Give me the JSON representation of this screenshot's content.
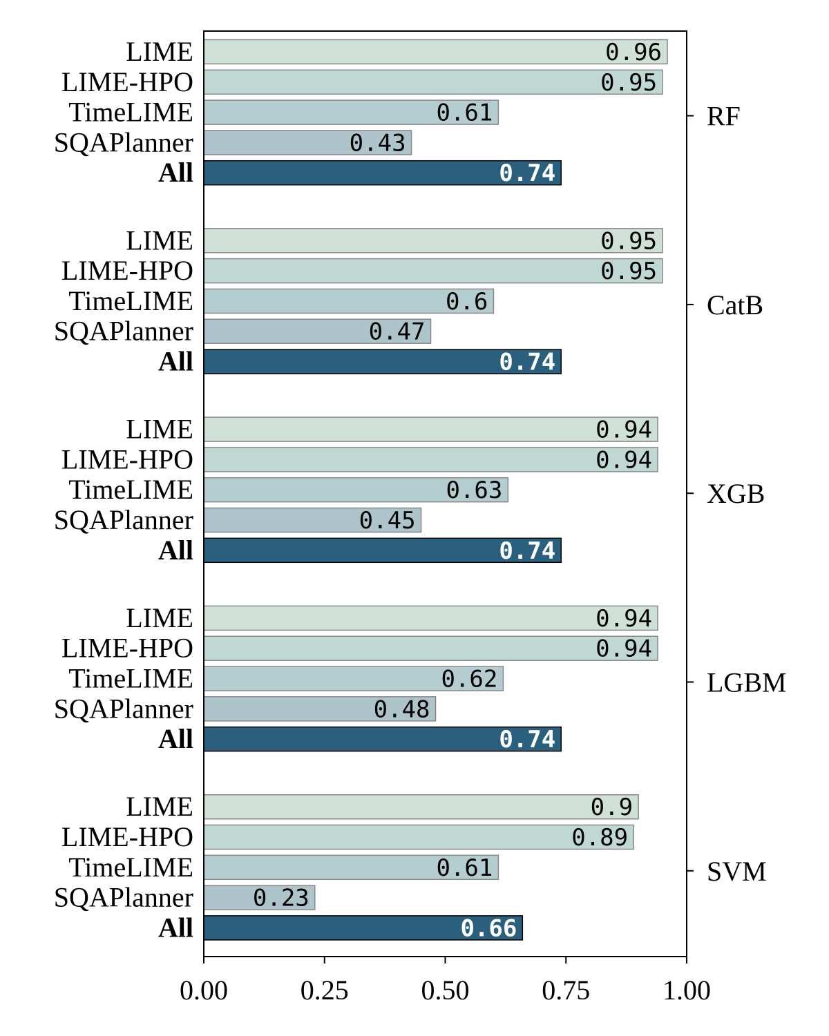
{
  "chart_data": {
    "type": "bar",
    "orientation": "horizontal",
    "xlim": [
      0,
      1
    ],
    "x_ticks": [
      "0.00",
      "0.25",
      "0.50",
      "0.75",
      "1.00"
    ],
    "grid": false,
    "groups": [
      {
        "name": "RF",
        "bars": [
          {
            "label": "LIME",
            "value": 0.96,
            "value_text": "0.96"
          },
          {
            "label": "LIME-HPO",
            "value": 0.95,
            "value_text": "0.95"
          },
          {
            "label": "TimeLIME",
            "value": 0.61,
            "value_text": "0.61"
          },
          {
            "label": "SQAPlanner",
            "value": 0.43,
            "value_text": "0.43"
          },
          {
            "label": "All",
            "value": 0.74,
            "value_text": "0.74"
          }
        ]
      },
      {
        "name": "CatB",
        "bars": [
          {
            "label": "LIME",
            "value": 0.95,
            "value_text": "0.95"
          },
          {
            "label": "LIME-HPO",
            "value": 0.95,
            "value_text": "0.95"
          },
          {
            "label": "TimeLIME",
            "value": 0.6,
            "value_text": "0.6"
          },
          {
            "label": "SQAPlanner",
            "value": 0.47,
            "value_text": "0.47"
          },
          {
            "label": "All",
            "value": 0.74,
            "value_text": "0.74"
          }
        ]
      },
      {
        "name": "XGB",
        "bars": [
          {
            "label": "LIME",
            "value": 0.94,
            "value_text": "0.94"
          },
          {
            "label": "LIME-HPO",
            "value": 0.94,
            "value_text": "0.94"
          },
          {
            "label": "TimeLIME",
            "value": 0.63,
            "value_text": "0.63"
          },
          {
            "label": "SQAPlanner",
            "value": 0.45,
            "value_text": "0.45"
          },
          {
            "label": "All",
            "value": 0.74,
            "value_text": "0.74"
          }
        ]
      },
      {
        "name": "LGBM",
        "bars": [
          {
            "label": "LIME",
            "value": 0.94,
            "value_text": "0.94"
          },
          {
            "label": "LIME-HPO",
            "value": 0.94,
            "value_text": "0.94"
          },
          {
            "label": "TimeLIME",
            "value": 0.62,
            "value_text": "0.62"
          },
          {
            "label": "SQAPlanner",
            "value": 0.48,
            "value_text": "0.48"
          },
          {
            "label": "All",
            "value": 0.74,
            "value_text": "0.74"
          }
        ]
      },
      {
        "name": "SVM",
        "bars": [
          {
            "label": "LIME",
            "value": 0.9,
            "value_text": "0.9"
          },
          {
            "label": "LIME-HPO",
            "value": 0.89,
            "value_text": "0.89"
          },
          {
            "label": "TimeLIME",
            "value": 0.61,
            "value_text": "0.61"
          },
          {
            "label": "SQAPlanner",
            "value": 0.23,
            "value_text": "0.23"
          },
          {
            "label": "All",
            "value": 0.66,
            "value_text": "0.66"
          }
        ]
      }
    ],
    "bar_colors": {
      "LIME": "#cfe1d6",
      "LIME-HPO": "#c0d8d3",
      "TimeLIME": "#b4cdd0",
      "SQAPlanner": "#adc4cb",
      "All": "#2a5f7d"
    }
  }
}
